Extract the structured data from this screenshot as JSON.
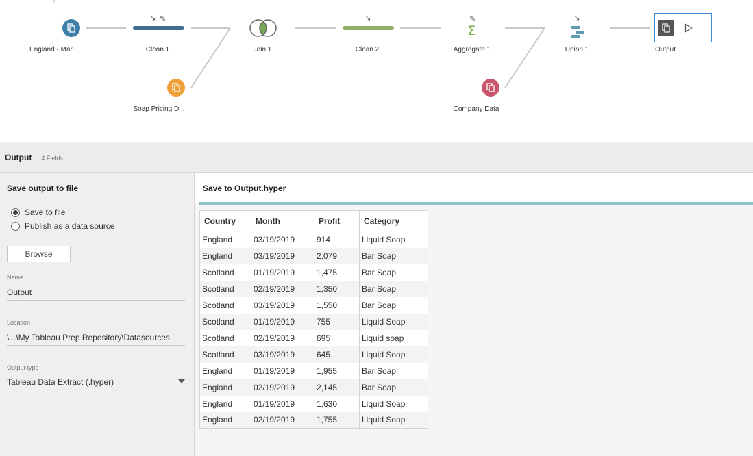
{
  "flow": {
    "nodes": {
      "england_market": {
        "label": "England - Mar ...",
        "color": "#3d7fa6"
      },
      "clean1": {
        "label": "Clean 1",
        "color": "#3d6e91"
      },
      "soap_pricing": {
        "label": "Soap Pricing D...",
        "color": "#f0a03a"
      },
      "join1": {
        "label": "Join 1"
      },
      "clean2": {
        "label": "Clean 2",
        "color": "#8fb16a"
      },
      "aggregate1": {
        "label": "Aggregate 1",
        "color": "#7cab4f"
      },
      "company_data": {
        "label": "Company Data",
        "color": "#c9556d"
      },
      "union1": {
        "label": "Union 1",
        "color": "#5e9db0"
      },
      "output": {
        "label": "Output"
      }
    }
  },
  "panel": {
    "title": "Output",
    "fields_count": "4 Fields"
  },
  "settings": {
    "section_title": "Save output to file",
    "radio_options": [
      {
        "label": "Save to file",
        "selected": true
      },
      {
        "label": "Publish as a data source",
        "selected": false
      }
    ],
    "browse_label": "Browse",
    "name_label": "Name",
    "name_value": "Output",
    "location_label": "Location",
    "location_value": "\\...\\My Tableau Prep Repository\\Datasources",
    "output_type_label": "Output type",
    "output_type_value": "Tableau Data Extract (.hyper)"
  },
  "preview": {
    "title": "Save to Output.hyper",
    "columns": [
      "Country",
      "Month",
      "Profit",
      "Category"
    ],
    "rows": [
      [
        "England",
        "03/19/2019",
        "914",
        "Liquid Soap"
      ],
      [
        "England",
        "03/19/2019",
        "2,079",
        "Bar Soap"
      ],
      [
        "Scotland",
        "01/19/2019",
        "1,475",
        "Bar Soap"
      ],
      [
        "Scotland",
        "02/19/2019",
        "1,350",
        "Bar Soap"
      ],
      [
        "Scotland",
        "03/19/2019",
        "1,550",
        "Bar Soap"
      ],
      [
        "Scotland",
        "01/19/2019",
        "755",
        "Liquid Soap"
      ],
      [
        "Scotland",
        "02/19/2019",
        "695",
        "Liquid soap"
      ],
      [
        "Scotland",
        "03/19/2019",
        "645",
        "Liquid Soap"
      ],
      [
        "England",
        "01/19/2019",
        "1,955",
        "Bar Soap"
      ],
      [
        "England",
        "02/19/2019",
        "2,145",
        "Bar Soap"
      ],
      [
        "England",
        "01/19/2019",
        "1,630",
        "Liquid Soap"
      ],
      [
        "England",
        "02/19/2019",
        "1,755",
        "Liquid Soap"
      ]
    ]
  }
}
